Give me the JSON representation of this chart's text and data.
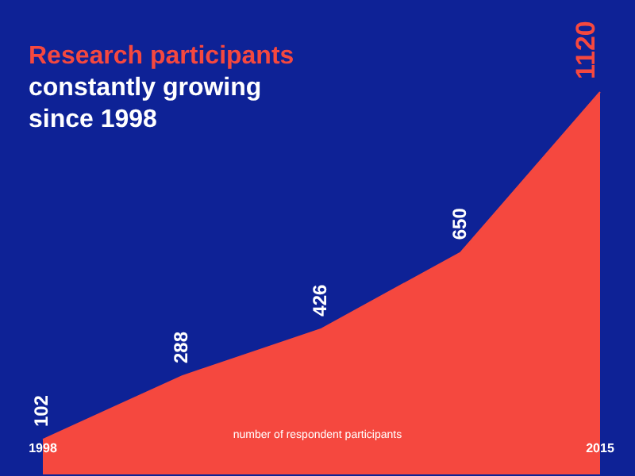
{
  "chart_data": {
    "type": "area",
    "title": "Research participants",
    "subtitle": "constantly growing since 1998",
    "xlabel": "number of respondent participants",
    "categories": [
      "1998",
      null,
      null,
      null,
      "2015"
    ],
    "values": [
      102,
      288,
      426,
      650,
      1120
    ],
    "color": "#f5483f",
    "data_labels": true
  }
}
